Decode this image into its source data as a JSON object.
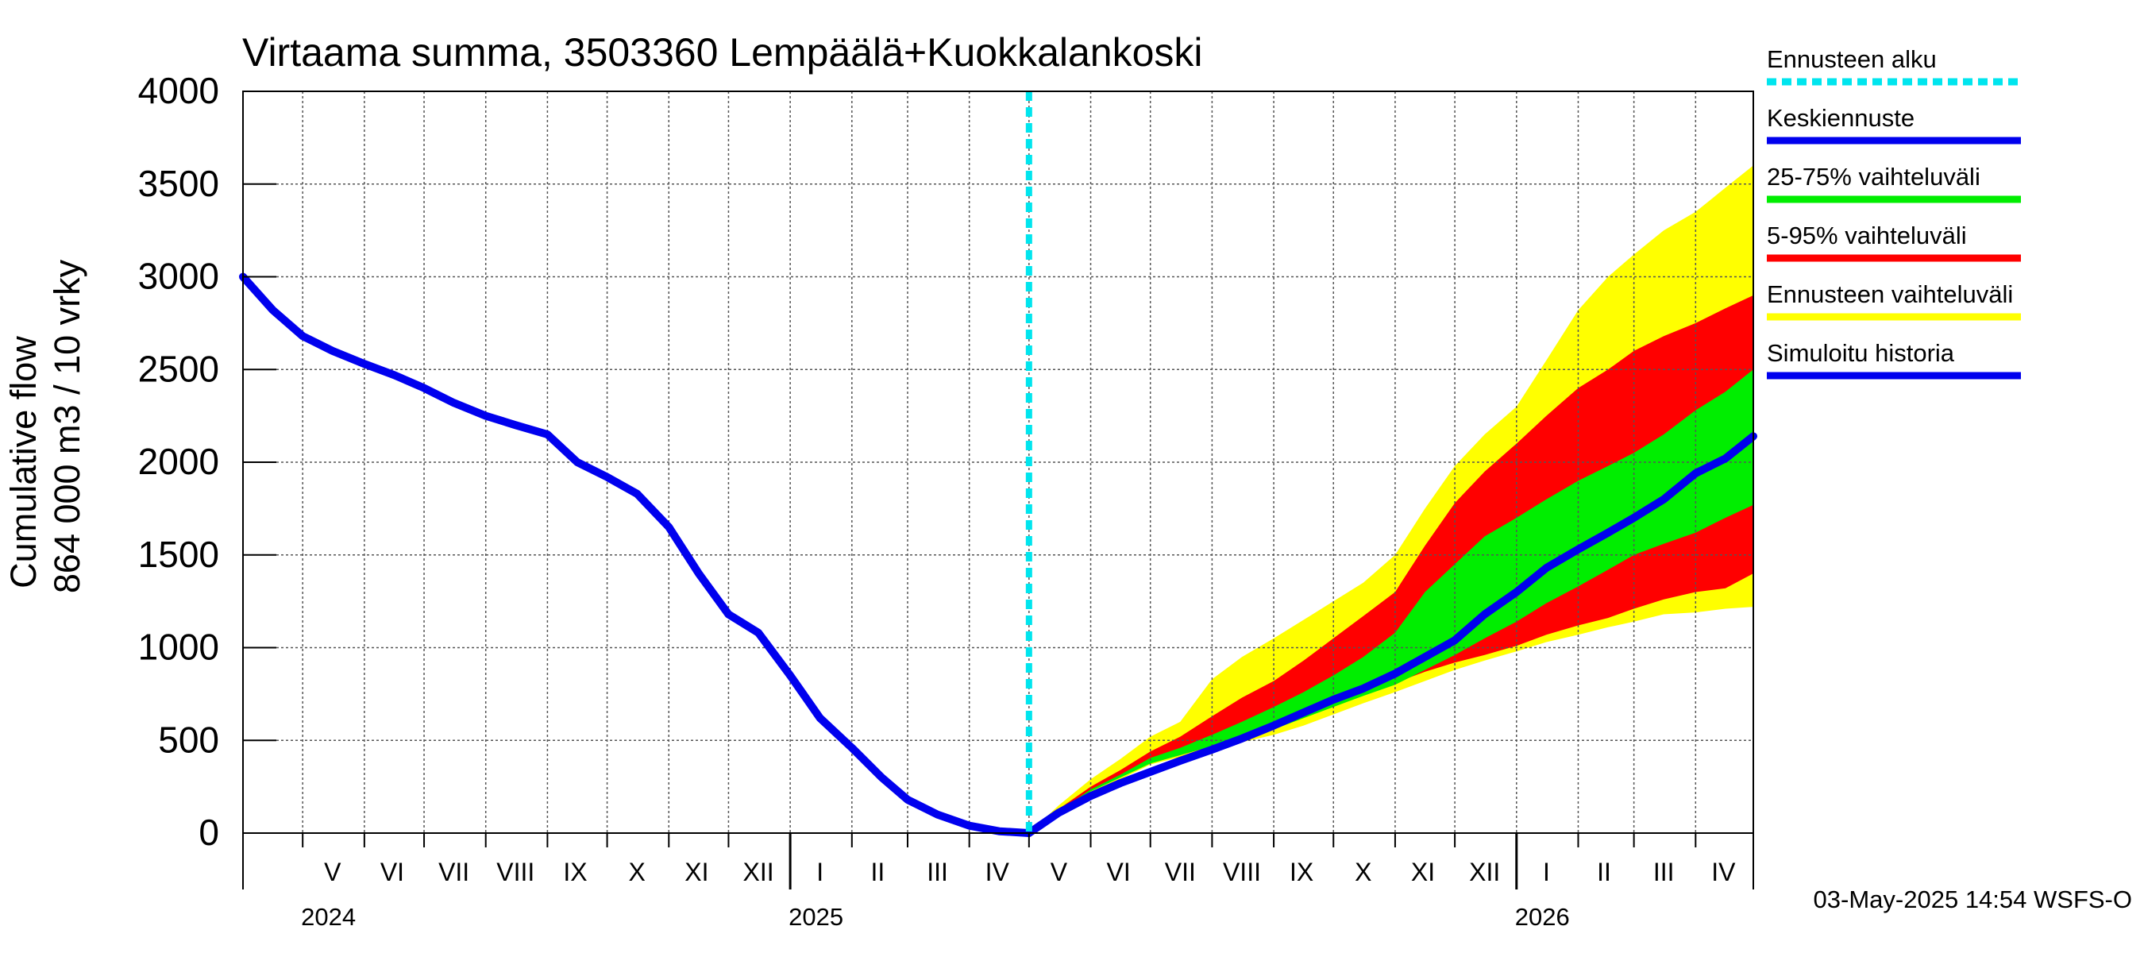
{
  "chart_data": {
    "type": "area",
    "title": "Virtaama summa, 3503360 Lempäälä+Kuokkalankoski",
    "ylabel_lines": [
      "864 000 m3 / 10 vrky",
      "Cumulative flow"
    ],
    "ylim": [
      0,
      4000
    ],
    "yticks": [
      0,
      500,
      1000,
      1500,
      2000,
      2500,
      3000,
      3500,
      4000
    ],
    "xlim": [
      "2024-04-01",
      "2026-04-30"
    ],
    "grid": true,
    "legend_position": "right",
    "month_labels": [
      {
        "label": "V",
        "date": "2024-05-16"
      },
      {
        "label": "VI",
        "date": "2024-06-15"
      },
      {
        "label": "VII",
        "date": "2024-07-16"
      },
      {
        "label": "VIII",
        "date": "2024-08-16"
      },
      {
        "label": "IX",
        "date": "2024-09-15"
      },
      {
        "label": "X",
        "date": "2024-10-16"
      },
      {
        "label": "XI",
        "date": "2024-11-15"
      },
      {
        "label": "XII",
        "date": "2024-12-16"
      },
      {
        "label": "I",
        "date": "2025-01-16"
      },
      {
        "label": "II",
        "date": "2025-02-14"
      },
      {
        "label": "III",
        "date": "2025-03-16"
      },
      {
        "label": "IV",
        "date": "2025-04-15"
      },
      {
        "label": "V",
        "date": "2025-05-16"
      },
      {
        "label": "VI",
        "date": "2025-06-15"
      },
      {
        "label": "VII",
        "date": "2025-07-16"
      },
      {
        "label": "VIII",
        "date": "2025-08-16"
      },
      {
        "label": "IX",
        "date": "2025-09-15"
      },
      {
        "label": "X",
        "date": "2025-10-16"
      },
      {
        "label": "XI",
        "date": "2025-11-15"
      },
      {
        "label": "XII",
        "date": "2025-12-16"
      },
      {
        "label": "I",
        "date": "2026-01-16"
      },
      {
        "label": "II",
        "date": "2026-02-14"
      },
      {
        "label": "III",
        "date": "2026-03-16"
      },
      {
        "label": "IV",
        "date": "2026-04-15"
      }
    ],
    "year_labels": [
      {
        "label": "2024",
        "date": "2024-05-01"
      },
      {
        "label": "2025",
        "date": "2025-01-01"
      },
      {
        "label": "2026",
        "date": "2026-01-01"
      }
    ],
    "forecast_start": "2025-05-01",
    "forecast_x": [
      "2025-05-01",
      "2025-05-16",
      "2025-06-01",
      "2025-06-16",
      "2025-07-01",
      "2025-07-16",
      "2025-08-01",
      "2025-08-16",
      "2025-09-01",
      "2025-09-16",
      "2025-10-01",
      "2025-10-16",
      "2025-11-01",
      "2025-11-16",
      "2025-12-01",
      "2025-12-16",
      "2026-01-01",
      "2026-01-16",
      "2026-02-01",
      "2026-02-16",
      "2026-03-01",
      "2026-03-16",
      "2026-04-01",
      "2026-04-16",
      "2026-04-30"
    ],
    "bands": [
      {
        "name": "Ennusteen vaihteluväli",
        "color": "#ffff00",
        "upper": [
          0,
          150,
          290,
          400,
          520,
          600,
          830,
          950,
          1050,
          1150,
          1250,
          1350,
          1500,
          1750,
          1980,
          2150,
          2300,
          2550,
          2820,
          3000,
          3120,
          3250,
          3350,
          3480,
          3600
        ],
        "lower": [
          0,
          100,
          210,
          290,
          370,
          410,
          450,
          490,
          530,
          580,
          640,
          700,
          760,
          820,
          880,
          930,
          980,
          1030,
          1070,
          1110,
          1140,
          1180,
          1190,
          1210,
          1220
        ]
      },
      {
        "name": "5-95% vaihteluväli",
        "color": "#ff0000",
        "upper": [
          0,
          130,
          250,
          340,
          440,
          520,
          630,
          730,
          820,
          930,
          1050,
          1170,
          1300,
          1550,
          1780,
          1950,
          2100,
          2250,
          2400,
          2500,
          2600,
          2680,
          2750,
          2830,
          2900
        ],
        "lower": [
          0,
          110,
          230,
          310,
          380,
          420,
          470,
          520,
          570,
          630,
          690,
          750,
          810,
          870,
          920,
          960,
          1010,
          1070,
          1120,
          1160,
          1210,
          1260,
          1300,
          1320,
          1400
        ]
      },
      {
        "name": "25-75% vaihteluväli",
        "color": "#00ee00",
        "upper": [
          0,
          120,
          235,
          315,
          405,
          460,
          530,
          600,
          680,
          760,
          850,
          950,
          1080,
          1300,
          1450,
          1600,
          1700,
          1800,
          1900,
          1980,
          2050,
          2150,
          2280,
          2380,
          2500
        ],
        "lower": [
          0,
          115,
          225,
          300,
          375,
          420,
          470,
          510,
          560,
          620,
          680,
          740,
          800,
          880,
          960,
          1050,
          1140,
          1240,
          1330,
          1420,
          1500,
          1560,
          1620,
          1700,
          1770
        ]
      }
    ],
    "series": [
      {
        "name": "Keskiennuste",
        "color": "#0000ee",
        "x": [
          "2025-05-01",
          "2025-05-16",
          "2025-06-01",
          "2025-06-16",
          "2025-07-01",
          "2025-07-16",
          "2025-08-01",
          "2025-08-16",
          "2025-09-01",
          "2025-09-16",
          "2025-10-01",
          "2025-10-16",
          "2025-11-01",
          "2025-11-16",
          "2025-12-01",
          "2025-12-16",
          "2026-01-01",
          "2026-01-16",
          "2026-02-01",
          "2026-02-16",
          "2026-03-01",
          "2026-03-16",
          "2026-04-01",
          "2026-04-16",
          "2026-04-30"
        ],
        "values": [
          0,
          110,
          200,
          270,
          330,
          390,
          450,
          510,
          580,
          650,
          720,
          780,
          860,
          950,
          1040,
          1180,
          1300,
          1430,
          1530,
          1620,
          1700,
          1800,
          1940,
          2020,
          2140
        ]
      },
      {
        "name": "Simuloitu historia",
        "color": "#0000ee",
        "x": [
          "2024-04-01",
          "2024-04-16",
          "2024-05-01",
          "2024-05-16",
          "2024-06-01",
          "2024-06-16",
          "2024-07-01",
          "2024-07-16",
          "2024-08-01",
          "2024-08-16",
          "2024-09-01",
          "2024-09-16",
          "2024-10-01",
          "2024-10-16",
          "2024-11-01",
          "2024-11-16",
          "2024-12-01",
          "2024-12-16",
          "2025-01-01",
          "2025-01-16",
          "2025-02-01",
          "2025-02-16",
          "2025-03-01",
          "2025-03-16",
          "2025-04-01",
          "2025-04-16",
          "2025-05-01"
        ],
        "values": [
          3000,
          2820,
          2680,
          2600,
          2530,
          2470,
          2400,
          2320,
          2250,
          2200,
          2150,
          2000,
          1920,
          1830,
          1650,
          1400,
          1180,
          1080,
          850,
          620,
          460,
          300,
          180,
          100,
          40,
          10,
          0
        ]
      }
    ],
    "legend": [
      {
        "label": "Ennusteen alku",
        "color": "#00e5ee",
        "style": "dashed"
      },
      {
        "label": "Keskiennuste",
        "color": "#0000ee",
        "style": "solid"
      },
      {
        "label": "25-75% vaihteluväli",
        "color": "#00ee00",
        "style": "solid"
      },
      {
        "label": "5-95% vaihteluväli",
        "color": "#ff0000",
        "style": "solid"
      },
      {
        "label": "Ennusteen vaihteluväli",
        "color": "#ffff00",
        "style": "solid"
      },
      {
        "label": "Simuloitu historia",
        "color": "#0000ee",
        "style": "solid"
      }
    ],
    "footer": "03-May-2025 14:54 WSFS-O"
  }
}
